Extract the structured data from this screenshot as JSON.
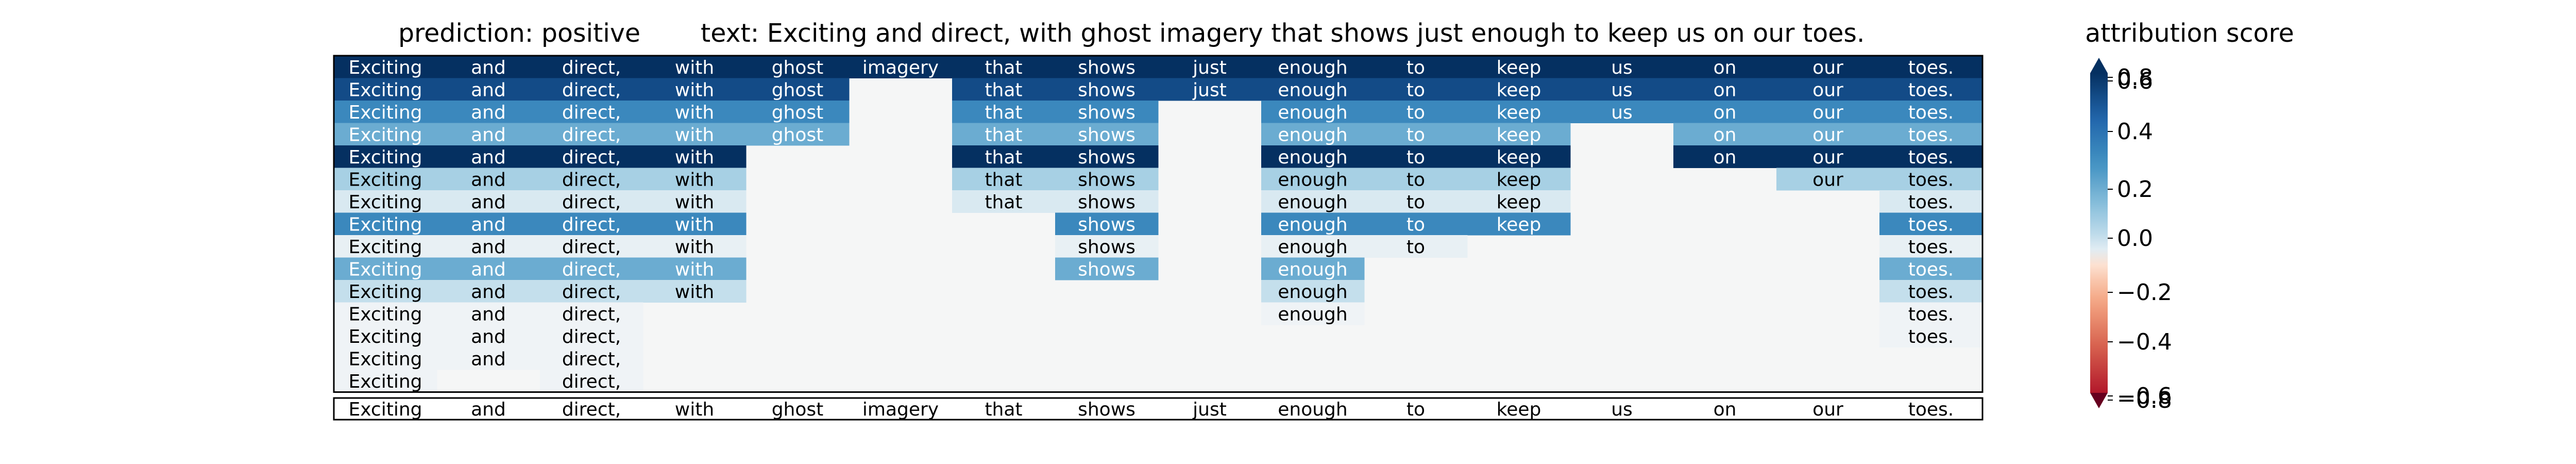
{
  "chart_data": {
    "type": "heatmap",
    "title_prediction": "prediction:  positive",
    "title_text": "text:  Exciting and direct, with ghost imagery that shows just enough to keep us on our toes.",
    "colorbar_label": "attribution score",
    "colorbar_range": [
      -0.6,
      0.8
    ],
    "colorbar_ticks": [
      "0.8",
      "0.6",
      "0.4",
      "0.2",
      "0.0",
      "−0.2",
      "−0.4",
      "−0.6",
      "−0.8"
    ],
    "tokens": [
      "Exciting",
      "and",
      "direct,",
      "with",
      "ghost",
      "imagery",
      "that",
      "shows",
      "just",
      "enough",
      "to",
      "keep",
      "us",
      "on",
      "our",
      "toes."
    ],
    "rows": [
      [
        0.8,
        0.8,
        0.8,
        0.8,
        0.8,
        0.8,
        0.8,
        0.8,
        0.8,
        0.8,
        0.8,
        0.8,
        0.8,
        0.8,
        0.8,
        0.8
      ],
      [
        0.7,
        0.7,
        0.7,
        0.7,
        0.7,
        null,
        0.7,
        0.7,
        0.7,
        0.7,
        0.7,
        0.7,
        0.7,
        0.7,
        0.7,
        0.7
      ],
      [
        0.45,
        0.45,
        0.45,
        0.45,
        0.45,
        null,
        0.45,
        0.45,
        null,
        0.45,
        0.45,
        0.45,
        0.45,
        0.45,
        0.45,
        0.45
      ],
      [
        0.3,
        0.3,
        0.3,
        0.3,
        0.3,
        null,
        0.3,
        0.3,
        null,
        0.3,
        0.3,
        0.3,
        null,
        0.3,
        0.3,
        0.3
      ],
      [
        0.8,
        0.8,
        0.8,
        0.8,
        null,
        null,
        0.8,
        0.8,
        null,
        0.8,
        0.8,
        0.8,
        null,
        0.8,
        0.8,
        0.8
      ],
      [
        0.15,
        0.15,
        0.15,
        0.15,
        null,
        null,
        0.15,
        0.15,
        null,
        0.15,
        0.15,
        0.15,
        null,
        null,
        0.15,
        0.15
      ],
      [
        0.04,
        0.04,
        0.04,
        0.04,
        null,
        null,
        0.04,
        0.04,
        null,
        0.04,
        0.04,
        0.04,
        null,
        null,
        null,
        0.04
      ],
      [
        0.45,
        0.45,
        0.45,
        0.45,
        null,
        null,
        null,
        0.45,
        null,
        0.45,
        0.45,
        0.45,
        null,
        null,
        null,
        0.45
      ],
      [
        0.02,
        0.02,
        0.02,
        0.02,
        null,
        null,
        null,
        0.02,
        null,
        0.02,
        0.02,
        null,
        null,
        null,
        null,
        0.02
      ],
      [
        0.3,
        0.3,
        0.3,
        0.3,
        null,
        null,
        null,
        0.3,
        null,
        0.3,
        null,
        null,
        null,
        null,
        null,
        0.3
      ],
      [
        0.08,
        0.08,
        0.08,
        0.08,
        null,
        null,
        null,
        null,
        null,
        0.08,
        null,
        null,
        null,
        null,
        null,
        0.08
      ],
      [
        0.01,
        0.01,
        0.01,
        null,
        null,
        null,
        null,
        null,
        null,
        0.01,
        null,
        null,
        null,
        null,
        null,
        0.01
      ],
      [
        0.01,
        0.01,
        0.01,
        null,
        null,
        null,
        null,
        null,
        null,
        null,
        null,
        null,
        null,
        null,
        null,
        0.01
      ],
      [
        0.01,
        0.01,
        0.01,
        null,
        null,
        null,
        null,
        null,
        null,
        null,
        null,
        null,
        null,
        null,
        null,
        null
      ],
      [
        0.01,
        null,
        0.01,
        null,
        null,
        null,
        null,
        null,
        null,
        null,
        null,
        null,
        null,
        null,
        null,
        null
      ]
    ],
    "colors": {
      "background_cell": "#f5f6f6",
      "frame": "#000000",
      "light_text": "#ffffff",
      "dark_text": "#000000"
    }
  }
}
